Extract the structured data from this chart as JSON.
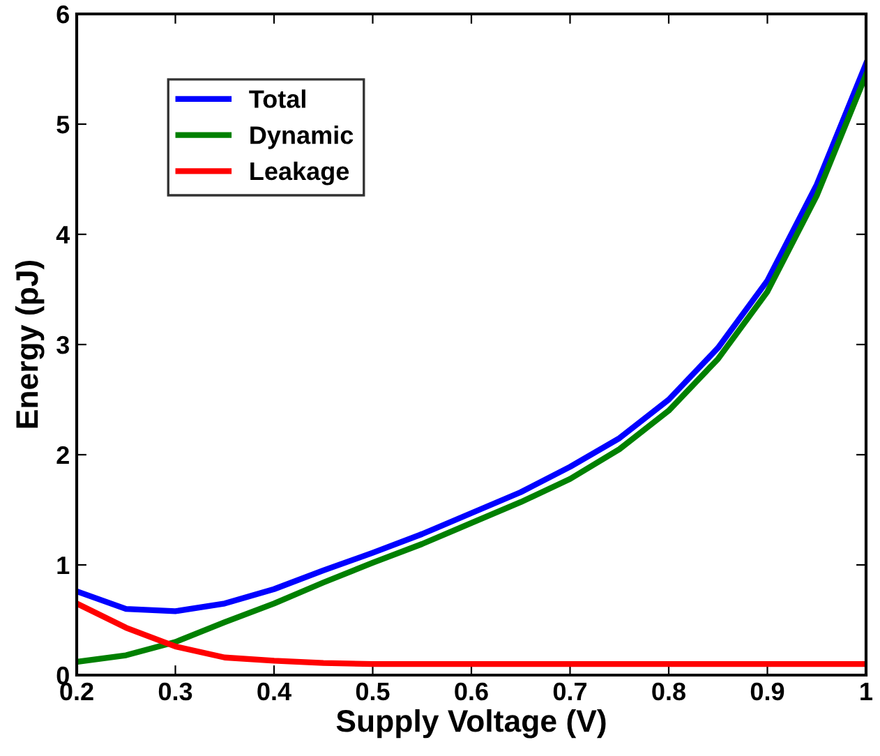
{
  "chart_data": {
    "type": "line",
    "xlabel": "Supply Voltage (V)",
    "ylabel": "Energy (pJ)",
    "x": [
      0.2,
      0.25,
      0.3,
      0.35,
      0.4,
      0.45,
      0.5,
      0.55,
      0.6,
      0.65,
      0.7,
      0.75,
      0.8,
      0.85,
      0.9,
      0.95,
      1.0
    ],
    "series": [
      {
        "name": "Total",
        "color": "#0000ff",
        "values": [
          0.76,
          0.6,
          0.58,
          0.65,
          0.78,
          0.95,
          1.11,
          1.28,
          1.47,
          1.66,
          1.89,
          2.15,
          2.5,
          2.97,
          3.58,
          4.45,
          5.55
        ]
      },
      {
        "name": "Dynamic",
        "color": "#008000",
        "values": [
          0.12,
          0.18,
          0.3,
          0.48,
          0.65,
          0.84,
          1.02,
          1.19,
          1.38,
          1.57,
          1.78,
          2.05,
          2.4,
          2.87,
          3.48,
          4.35,
          5.45
        ]
      },
      {
        "name": "Leakage",
        "color": "#ff0000",
        "values": [
          0.65,
          0.43,
          0.26,
          0.16,
          0.13,
          0.11,
          0.1,
          0.1,
          0.1,
          0.1,
          0.1,
          0.1,
          0.1,
          0.1,
          0.1,
          0.1,
          0.1
        ]
      }
    ],
    "xlim": [
      0.2,
      1.0
    ],
    "ylim": [
      0,
      6
    ],
    "xticks": [
      0.2,
      0.3,
      0.4,
      0.5,
      0.6,
      0.7,
      0.8,
      0.9,
      1
    ],
    "yticks": [
      0,
      1,
      2,
      3,
      4,
      5,
      6
    ],
    "grid": false,
    "legend": "top left",
    "marker": "none",
    "line_style": "solid"
  }
}
